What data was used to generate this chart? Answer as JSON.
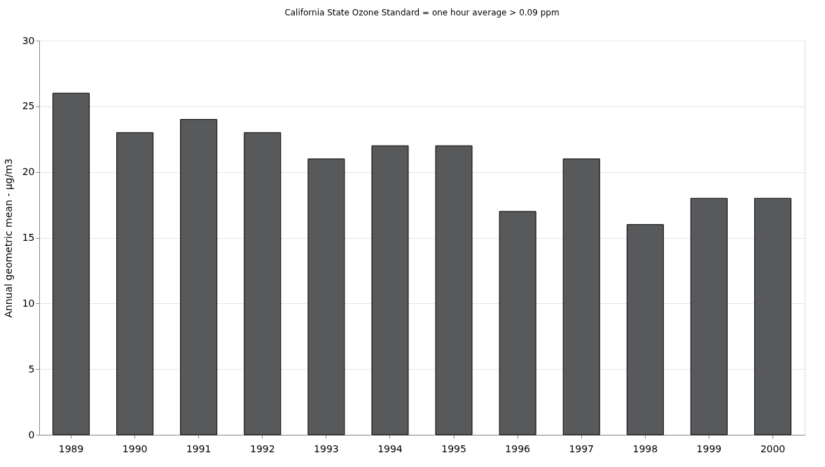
{
  "chart_data": {
    "type": "bar",
    "title": "California State Ozone Standard = one hour average > 0.09 ppm",
    "ylabel": "Annual geometric mean - µg/m3",
    "categories": [
      "1989",
      "1990",
      "1991",
      "1992",
      "1993",
      "1994",
      "1995",
      "1996",
      "1997",
      "1998",
      "1999",
      "2000"
    ],
    "values": [
      26,
      23,
      24,
      23,
      21,
      22,
      22,
      17,
      21,
      16,
      18,
      18
    ],
    "color": "#58595b",
    "ylim": [
      0,
      30
    ],
    "yticks": [
      0,
      5,
      10,
      15,
      20,
      25,
      30
    ],
    "grid": "y"
  }
}
